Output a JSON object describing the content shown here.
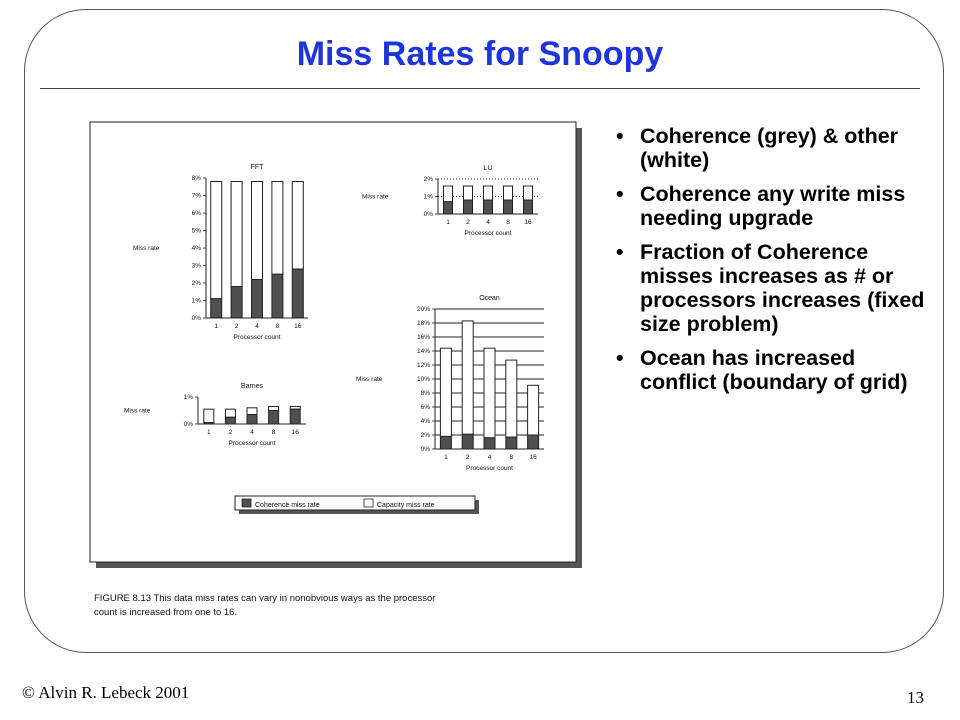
{
  "slide": {
    "title": "Miss Rates for Snoopy",
    "bullets": [
      "Coherence (grey) & other (white)",
      "Coherence any write miss needing upgrade",
      "Fraction of Coherence misses increases as # or processors increases (fixed size problem)",
      "Ocean has increased conflict (boundary of grid)"
    ],
    "bullet_glyph": "•",
    "footer_left": "© Alvin R. Lebeck 2001",
    "page_number": "13"
  },
  "figure": {
    "caption_line1": "FIGURE 8.13  This data miss rates can vary in nonobvious ways as the processor",
    "caption_line2": "count is increased from one to 16.",
    "legend": {
      "coherence": "Coherence miss rate",
      "capacity": "Capacity miss rate"
    },
    "colors": {
      "coherence": "#505050",
      "capacity": "#ffffff",
      "gridline": "#222222"
    }
  },
  "chart_data": [
    {
      "type": "bar",
      "title": "FFT",
      "xlabel": "Processor count",
      "ylabel": "Miss rate",
      "categories": [
        "1",
        "2",
        "4",
        "8",
        "16"
      ],
      "yticks": [
        "0%",
        "1%",
        "2%",
        "3%",
        "4%",
        "5%",
        "6%",
        "7%",
        "8%"
      ],
      "ylim": [
        0,
        8
      ],
      "stacked": true,
      "series": [
        {
          "name": "Coherence miss rate",
          "values": [
            1.1,
            1.8,
            2.2,
            2.5,
            2.8
          ]
        },
        {
          "name": "Capacity miss rate",
          "values": [
            6.7,
            6.0,
            5.6,
            5.3,
            5.0
          ]
        }
      ]
    },
    {
      "type": "bar",
      "title": "LU",
      "xlabel": "Processor count",
      "ylabel": "Miss rate",
      "categories": [
        "1",
        "2",
        "4",
        "8",
        "16"
      ],
      "yticks": [
        "0%",
        "1%",
        "2%"
      ],
      "ylim": [
        0,
        2
      ],
      "stacked": true,
      "series": [
        {
          "name": "Coherence miss rate",
          "values": [
            0.7,
            0.8,
            0.8,
            0.8,
            0.8
          ]
        },
        {
          "name": "Capacity miss rate",
          "values": [
            0.9,
            0.8,
            0.8,
            0.8,
            0.8
          ]
        }
      ]
    },
    {
      "type": "bar",
      "title": "Barnes",
      "xlabel": "Processor count",
      "ylabel": "Miss rate",
      "categories": [
        "1",
        "2",
        "4",
        "8",
        "16"
      ],
      "yticks": [
        "0%",
        "1%"
      ],
      "ylim": [
        0,
        1
      ],
      "stacked": true,
      "series": [
        {
          "name": "Coherence miss rate",
          "values": [
            0.05,
            0.25,
            0.35,
            0.5,
            0.55
          ]
        },
        {
          "name": "Capacity miss rate",
          "values": [
            0.5,
            0.3,
            0.25,
            0.15,
            0.1
          ]
        }
      ]
    },
    {
      "type": "bar",
      "title": "Ocean",
      "xlabel": "Processor count",
      "ylabel": "Miss rate",
      "categories": [
        "1",
        "2",
        "4",
        "8",
        "16"
      ],
      "yticks": [
        "0%",
        "2%",
        "4%",
        "6%",
        "8%",
        "10%",
        "12%",
        "14%",
        "16%",
        "18%",
        "20%"
      ],
      "ylim": [
        0,
        20
      ],
      "stacked": true,
      "series": [
        {
          "name": "Coherence miss rate",
          "values": [
            1.8,
            2.1,
            1.6,
            1.7,
            2.0
          ]
        },
        {
          "name": "Capacity miss rate",
          "values": [
            12.6,
            16.2,
            12.8,
            11.0,
            7.1
          ]
        }
      ]
    }
  ]
}
